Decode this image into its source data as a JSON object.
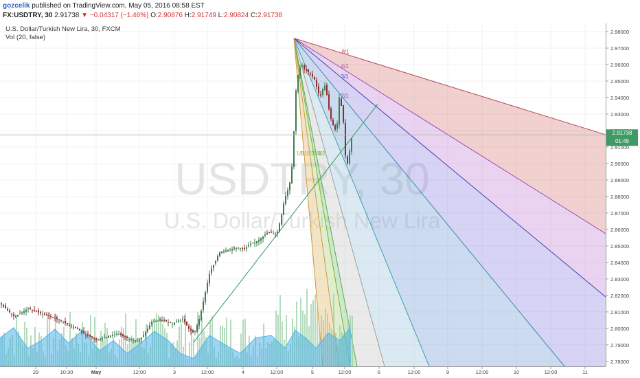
{
  "header": {
    "author": "gozcelik",
    "published_text": "published on TradingView.com, May 05, 2016 08:58 EST",
    "symbol_line": "FX:USDTRY, 30",
    "last": "2.91738",
    "arrow": "▼",
    "change": "−0.04317 (−1.46%)",
    "o_label": "O:",
    "o_value": "2.90876",
    "h_label": "H:",
    "h_value": "2.91749",
    "l_label": "L:",
    "l_value": "2.90824",
    "c_label": "C:",
    "c_value": "2.91738"
  },
  "legend": {
    "main_series": "U.S. Dollar/Turkish New Lira, 30, FXCM",
    "volume_series": "Vol (20, false)"
  },
  "watermark": {
    "symbol": "USDTRY, 30",
    "name": "U.S. Dollar/Turkish New Lira"
  },
  "price_badge": {
    "price": "2.91738",
    "countdown": "01:49"
  },
  "colors": {
    "up": "#3a7d4e",
    "down": "#8a2f2f",
    "volume": "#9ccfa8",
    "volume_ma": "#4fb3e8",
    "badge": "#3f9b63"
  },
  "chart_data": {
    "type": "candlestick",
    "y_axis_ticks": [
      "2.98000",
      "2.97000",
      "2.96000",
      "2.95000",
      "2.94000",
      "2.93000",
      "2.92000",
      "2.91000",
      "2.90000",
      "2.89000",
      "2.88000",
      "2.87000",
      "2.86000",
      "2.85000",
      "2.84000",
      "2.83000",
      "2.82000",
      "2.81000",
      "2.80000",
      "2.79000",
      "2.78000"
    ],
    "ylim": [
      2.777,
      2.985
    ],
    "x_axis_ticks": [
      "29",
      "10:30",
      "May",
      "12:00",
      "3",
      "12:00",
      "4",
      "12:00",
      "5",
      "12:00",
      "6",
      "12:00",
      "9",
      "12:00",
      "10",
      "12:00",
      "11"
    ],
    "close_path": [
      [
        0,
        2.815
      ],
      [
        20,
        2.807
      ],
      [
        40,
        2.812
      ],
      [
        60,
        2.809
      ],
      [
        80,
        2.806
      ],
      [
        95,
        2.803
      ],
      [
        110,
        2.8
      ],
      [
        125,
        2.796
      ],
      [
        140,
        2.793
      ],
      [
        155,
        2.795
      ],
      [
        170,
        2.797
      ],
      [
        185,
        2.794
      ],
      [
        200,
        2.792
      ],
      [
        210,
        2.797
      ],
      [
        220,
        2.804
      ],
      [
        235,
        2.805
      ],
      [
        250,
        2.803
      ],
      [
        265,
        2.806
      ],
      [
        275,
        2.799
      ],
      [
        282,
        2.797
      ],
      [
        290,
        2.807
      ],
      [
        298,
        2.822
      ],
      [
        305,
        2.835
      ],
      [
        312,
        2.84
      ],
      [
        318,
        2.846
      ],
      [
        325,
        2.847
      ],
      [
        335,
        2.848
      ],
      [
        345,
        2.849
      ],
      [
        355,
        2.848
      ],
      [
        362,
        2.851
      ],
      [
        370,
        2.852
      ],
      [
        380,
        2.855
      ],
      [
        388,
        2.858
      ],
      [
        395,
        2.858
      ],
      [
        402,
        2.857
      ],
      [
        408,
        2.867
      ],
      [
        413,
        2.878
      ],
      [
        418,
        2.884
      ],
      [
        422,
        2.89
      ],
      [
        426,
        2.906
      ],
      [
        428,
        2.933
      ],
      [
        431,
        2.95
      ],
      [
        435,
        2.957
      ],
      [
        438,
        2.96
      ],
      [
        442,
        2.957
      ],
      [
        447,
        2.956
      ],
      [
        452,
        2.954
      ],
      [
        457,
        2.951
      ],
      [
        461,
        2.945
      ],
      [
        465,
        2.94
      ],
      [
        469,
        2.945
      ],
      [
        473,
        2.948
      ],
      [
        477,
        2.935
      ],
      [
        481,
        2.927
      ],
      [
        485,
        2.922
      ],
      [
        489,
        2.919
      ],
      [
        493,
        2.94
      ],
      [
        496,
        2.935
      ],
      [
        499,
        2.925
      ],
      [
        502,
        2.905
      ],
      [
        505,
        2.9
      ],
      [
        507,
        2.903
      ],
      [
        509,
        2.912
      ],
      [
        512,
        2.917
      ]
    ],
    "volume_ma_path": [
      [
        0,
        0.55
      ],
      [
        20,
        0.75
      ],
      [
        40,
        0.35
      ],
      [
        60,
        0.5
      ],
      [
        80,
        0.72
      ],
      [
        100,
        0.45
      ],
      [
        120,
        0.7
      ],
      [
        145,
        0.3
      ],
      [
        165,
        0.5
      ],
      [
        185,
        0.25
      ],
      [
        205,
        0.45
      ],
      [
        225,
        0.68
      ],
      [
        245,
        0.5
      ],
      [
        262,
        0.25
      ],
      [
        282,
        0.15
      ],
      [
        305,
        0.6
      ],
      [
        330,
        0.4
      ],
      [
        350,
        0.25
      ],
      [
        372,
        0.55
      ],
      [
        395,
        0.6
      ],
      [
        415,
        0.35
      ],
      [
        430,
        0.7
      ],
      [
        445,
        0.55
      ],
      [
        460,
        0.35
      ],
      [
        478,
        0.65
      ],
      [
        495,
        0.5
      ],
      [
        510,
        0.75
      ]
    ],
    "gann_fan": {
      "origin": [
        428,
        2.976
      ],
      "labels": [
        "8/1",
        "4/1",
        "3/1",
        "2/1",
        "1/1",
        "1/2",
        "1/3",
        "1/4",
        "1/8"
      ]
    },
    "trendline": {
      "from": [
        282,
        2.7915
      ],
      "to": [
        550,
        2.936
      ]
    }
  }
}
